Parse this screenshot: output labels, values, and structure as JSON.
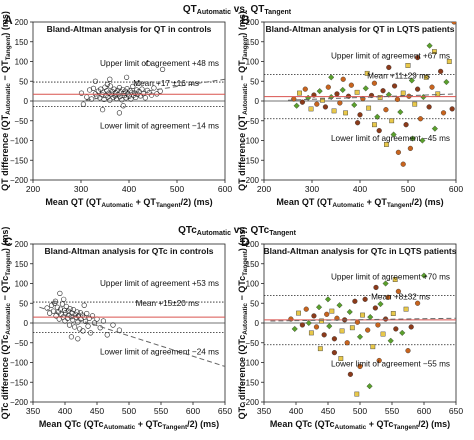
{
  "figure": {
    "row_headers": [
      {
        "main": "QT",
        "sub1": "Automatic",
        "mid": " vs. QT",
        "sub2": "Tangent"
      },
      {
        "main": "QTc",
        "sub1": "Automatic",
        "mid": " vs. QTc",
        "sub2": "Tangent"
      }
    ]
  },
  "colors": {
    "mean_line": "#d9534f",
    "trend_line": "#666666",
    "loa_line": "#222222",
    "controls_marker": "#222222",
    "lqts_markers": [
      "#c8641e",
      "#5aa02c",
      "#e8c84a",
      "#8b3a1a"
    ]
  },
  "chart_data": [
    {
      "panel": "A",
      "type": "scatter",
      "title": "Bland-Altman analysis for QT in controls",
      "xlabel": {
        "main": "Mean QT (QT",
        "sub1": "Automatic",
        "mid": " + QT",
        "sub2": "Tangent",
        "end": "/2) (ms)"
      },
      "ylabel": {
        "main": "QT difference (QT",
        "sub1": "Automatic",
        "mid": " − QT",
        "sub2": "Tangent",
        "end": ") (ms)"
      },
      "xlim": [
        200,
        600
      ],
      "ylim": [
        -200,
        200
      ],
      "xticks": [
        200,
        300,
        400,
        500,
        600
      ],
      "yticks": [
        -200,
        -150,
        -100,
        -50,
        0,
        50,
        100,
        150,
        200
      ],
      "mean": 17,
      "upper": 48,
      "lower": -14,
      "trend": [
        [
          310,
          2
        ],
        [
          600,
          55
        ]
      ],
      "annotations": {
        "upper": "Upper limit of agreement +48 ms",
        "mean": "Mean +17 ±16 ms",
        "lower": "Lower limit of agreement −14 ms"
      },
      "marker": "circle",
      "points": [
        [
          301,
          20
        ],
        [
          312,
          10
        ],
        [
          318,
          28
        ],
        [
          322,
          5
        ],
        [
          326,
          32
        ],
        [
          330,
          18
        ],
        [
          333,
          12
        ],
        [
          336,
          25
        ],
        [
          339,
          8
        ],
        [
          341,
          30
        ],
        [
          344,
          16
        ],
        [
          346,
          22
        ],
        [
          348,
          4
        ],
        [
          350,
          35
        ],
        [
          352,
          14
        ],
        [
          354,
          26
        ],
        [
          356,
          10
        ],
        [
          358,
          20
        ],
        [
          360,
          2
        ],
        [
          361,
          38
        ],
        [
          363,
          17
        ],
        [
          365,
          24
        ],
        [
          367,
          9
        ],
        [
          369,
          30
        ],
        [
          371,
          13
        ],
        [
          372,
          21
        ],
        [
          374,
          6
        ],
        [
          376,
          27
        ],
        [
          378,
          16
        ],
        [
          380,
          34
        ],
        [
          381,
          11
        ],
        [
          383,
          23
        ],
        [
          385,
          3
        ],
        [
          387,
          29
        ],
        [
          389,
          19
        ],
        [
          390,
          14
        ],
        [
          392,
          25
        ],
        [
          394,
          8
        ],
        [
          396,
          31
        ],
        [
          398,
          18
        ],
        [
          400,
          12
        ],
        [
          402,
          26
        ],
        [
          404,
          5
        ],
        [
          406,
          22
        ],
        [
          408,
          37
        ],
        [
          410,
          15
        ],
        [
          412,
          20
        ],
        [
          414,
          9
        ],
        [
          416,
          28
        ],
        [
          418,
          17
        ],
        [
          421,
          24
        ],
        [
          424,
          13
        ],
        [
          427,
          30
        ],
        [
          430,
          19
        ],
        [
          434,
          8
        ],
        [
          438,
          27
        ],
        [
          442,
          21
        ],
        [
          447,
          15
        ],
        [
          452,
          33
        ],
        [
          458,
          18
        ],
        [
          465,
          25
        ],
        [
          345,
          -22
        ],
        [
          380,
          -30
        ],
        [
          360,
          55
        ],
        [
          395,
          60
        ],
        [
          420,
          45
        ],
        [
          305,
          -8
        ],
        [
          355,
          42
        ],
        [
          440,
          95
        ],
        [
          470,
          80
        ],
        [
          330,
          50
        ],
        [
          388,
          -12
        ]
      ]
    },
    {
      "panel": "B",
      "type": "scatter",
      "title": "Bland-Altman analysis for QT in LQTS patients",
      "xlabel": {
        "main": "Mean QT (QT",
        "sub1": "Automatic",
        "mid": " + QT",
        "sub2": "Tangent",
        "end": "/2) (ms)"
      },
      "ylabel": {
        "main": "QT difference (QT",
        "sub1": "Automatic",
        "mid": " − QT",
        "sub2": "Tangent",
        "end": ") (ms)"
      },
      "xlim": [
        200,
        600
      ],
      "ylim": [
        -200,
        200
      ],
      "xticks": [
        200,
        300,
        400,
        500,
        600
      ],
      "yticks": [
        -200,
        -150,
        -100,
        -50,
        0,
        50,
        100,
        150,
        200
      ],
      "mean": 11,
      "upper": 67,
      "lower": -45,
      "trend": [
        [
          250,
          2
        ],
        [
          600,
          18
        ]
      ],
      "annotations": {
        "upper": "Upper limit of agreement +67 ms",
        "mean": "Mean +11±29 ms",
        "lower": "Lower limit of agreement −45 ms"
      },
      "marker": "mixed",
      "points": [
        [
          262,
          5
        ],
        [
          268,
          -12
        ],
        [
          274,
          20
        ],
        [
          280,
          -3
        ],
        [
          286,
          30
        ],
        [
          292,
          8
        ],
        [
          298,
          -20
        ],
        [
          304,
          15
        ],
        [
          310,
          -8
        ],
        [
          316,
          25
        ],
        [
          322,
          2
        ],
        [
          328,
          -15
        ],
        [
          334,
          35
        ],
        [
          340,
          10
        ],
        [
          346,
          -25
        ],
        [
          352,
          18
        ],
        [
          358,
          -5
        ],
        [
          364,
          28
        ],
        [
          370,
          -30
        ],
        [
          376,
          12
        ],
        [
          382,
          40
        ],
        [
          388,
          -10
        ],
        [
          394,
          22
        ],
        [
          400,
          -35
        ],
        [
          406,
          6
        ],
        [
          412,
          32
        ],
        [
          418,
          -18
        ],
        [
          424,
          14
        ],
        [
          430,
          45
        ],
        [
          436,
          -40
        ],
        [
          442,
          9
        ],
        [
          448,
          26
        ],
        [
          454,
          -22
        ],
        [
          460,
          16
        ],
        [
          466,
          -50
        ],
        [
          472,
          38
        ],
        [
          478,
          4
        ],
        [
          484,
          -28
        ],
        [
          490,
          20
        ],
        [
          496,
          -60
        ],
        [
          502,
          12
        ],
        [
          508,
          52
        ],
        [
          514,
          -8
        ],
        [
          520,
          30
        ],
        [
          526,
          -45
        ],
        [
          532,
          10
        ],
        [
          538,
          60
        ],
        [
          544,
          -15
        ],
        [
          550,
          35
        ],
        [
          556,
          -70
        ],
        [
          562,
          18
        ],
        [
          568,
          75
        ],
        [
          574,
          -30
        ],
        [
          580,
          48
        ],
        [
          586,
          100
        ],
        [
          592,
          -20
        ],
        [
          596,
          200
        ],
        [
          470,
          -85
        ],
        [
          455,
          -110
        ],
        [
          440,
          -75
        ],
        [
          480,
          -130
        ],
        [
          510,
          -95
        ],
        [
          500,
          90
        ],
        [
          520,
          110
        ],
        [
          490,
          -160
        ],
        [
          545,
          140
        ],
        [
          430,
          -60
        ],
        [
          395,
          -55
        ],
        [
          365,
          55
        ],
        [
          340,
          60
        ],
        [
          415,
          70
        ],
        [
          460,
          85
        ],
        [
          505,
          -120
        ],
        [
          530,
          -100
        ],
        [
          555,
          125
        ]
      ]
    },
    {
      "panel": "C",
      "type": "scatter",
      "title": "Bland-Altman analysis for QTc in controls",
      "xlabel": {
        "main": "Mean QTc (QTc",
        "sub1": "Automatic",
        "mid": " + QTc",
        "sub2": "Tangent",
        "end": "/2) (ms)"
      },
      "ylabel": {
        "main": "QTc difference (QTc",
        "sub1": "Automatic",
        "mid": " − QTc",
        "sub2": "Tangent",
        "end": ") (ms)"
      },
      "xlim": [
        350,
        650
      ],
      "ylim": [
        -200,
        200
      ],
      "xticks": [
        350,
        400,
        450,
        500,
        550,
        600,
        650
      ],
      "yticks": [
        -200,
        -150,
        -100,
        -50,
        0,
        50,
        100,
        150,
        200
      ],
      "mean": 15,
      "upper": 53,
      "lower": -24,
      "trend": [
        [
          360,
          40
        ],
        [
          650,
          -110
        ]
      ],
      "annotations": {
        "upper": "Upper limit of agreement +53 ms",
        "mean": "Mean +15±20 ms",
        "lower": "Lower limit of agreement −24 ms"
      },
      "marker": "circle",
      "points": [
        [
          372,
          38
        ],
        [
          376,
          25
        ],
        [
          379,
          45
        ],
        [
          382,
          30
        ],
        [
          384,
          50
        ],
        [
          386,
          18
        ],
        [
          388,
          40
        ],
        [
          390,
          28
        ],
        [
          391,
          10
        ],
        [
          393,
          35
        ],
        [
          394,
          22
        ],
        [
          396,
          48
        ],
        [
          397,
          15
        ],
        [
          399,
          32
        ],
        [
          400,
          5
        ],
        [
          401,
          26
        ],
        [
          402,
          42
        ],
        [
          404,
          12
        ],
        [
          405,
          30
        ],
        [
          406,
          20
        ],
        [
          407,
          -5
        ],
        [
          408,
          36
        ],
        [
          410,
          16
        ],
        [
          411,
          25
        ],
        [
          412,
          8
        ],
        [
          413,
          34
        ],
        [
          415,
          -10
        ],
        [
          416,
          22
        ],
        [
          417,
          14
        ],
        [
          419,
          28
        ],
        [
          420,
          2
        ],
        [
          421,
          18
        ],
        [
          423,
          -15
        ],
        [
          424,
          26
        ],
        [
          425,
          10
        ],
        [
          427,
          20
        ],
        [
          428,
          -20
        ],
        [
          430,
          15
        ],
        [
          432,
          4
        ],
        [
          434,
          24
        ],
        [
          436,
          -8
        ],
        [
          438,
          12
        ],
        [
          440,
          -25
        ],
        [
          443,
          18
        ],
        [
          446,
          0
        ],
        [
          450,
          10
        ],
        [
          455,
          -12
        ],
        [
          460,
          5
        ],
        [
          466,
          -30
        ],
        [
          475,
          -5
        ],
        [
          485,
          -18
        ],
        [
          398,
          60
        ],
        [
          392,
          75
        ],
        [
          410,
          -35
        ],
        [
          420,
          -40
        ],
        [
          385,
          55
        ],
        [
          430,
          45
        ]
      ]
    },
    {
      "panel": "D",
      "type": "scatter",
      "title": "Bland-Altman analysis for QTc in LQTS patients",
      "xlabel": {
        "main": "Mean QTc (QTc",
        "sub1": "Automatic",
        "mid": " + QTc",
        "sub2": "Tangent",
        "end": "/2) (ms)"
      },
      "ylabel": {
        "main": "QTc difference (QTc",
        "sub1": "Automatic",
        "mid": " − QTc",
        "sub2": "Tangent",
        "end": ") (ms)"
      },
      "xlim": [
        350,
        650
      ],
      "ylim": [
        -200,
        200
      ],
      "xticks": [
        350,
        400,
        450,
        500,
        550,
        600,
        650
      ],
      "yticks": [
        -200,
        -150,
        -100,
        -50,
        0,
        50,
        100,
        150,
        200
      ],
      "mean": 8,
      "upper": 70,
      "lower": -55,
      "trend": [
        [
          360,
          5
        ],
        [
          650,
          12
        ]
      ],
      "annotations": {
        "upper": "Upper limit of agreement +70 ms",
        "mean": "Mean +8±32 ms",
        "lower": "Lower limit of agreement −55 ms"
      },
      "marker": "mixed",
      "points": [
        [
          392,
          10
        ],
        [
          398,
          -15
        ],
        [
          404,
          25
        ],
        [
          410,
          -5
        ],
        [
          416,
          35
        ],
        [
          420,
          0
        ],
        [
          424,
          -25
        ],
        [
          428,
          18
        ],
        [
          432,
          -10
        ],
        [
          436,
          40
        ],
        [
          440,
          5
        ],
        [
          444,
          -30
        ],
        [
          448,
          22
        ],
        [
          452,
          -8
        ],
        [
          456,
          30
        ],
        [
          460,
          -40
        ],
        [
          464,
          12
        ],
        [
          468,
          45
        ],
        [
          472,
          -20
        ],
        [
          476,
          8
        ],
        [
          480,
          -50
        ],
        [
          484,
          28
        ],
        [
          488,
          -12
        ],
        [
          492,
          55
        ],
        [
          496,
          2
        ],
        [
          500,
          -35
        ],
        [
          504,
          20
        ],
        [
          508,
          60
        ],
        [
          512,
          -18
        ],
        [
          516,
          15
        ],
        [
          520,
          -60
        ],
        [
          524,
          38
        ],
        [
          528,
          -5
        ],
        [
          532,
          48
        ],
        [
          536,
          -28
        ],
        [
          540,
          10
        ],
        [
          544,
          65
        ],
        [
          548,
          -45
        ],
        [
          552,
          24
        ],
        [
          556,
          -15
        ],
        [
          560,
          80
        ],
        [
          566,
          -25
        ],
        [
          572,
          35
        ],
        [
          580,
          -10
        ],
        [
          590,
          50
        ],
        [
          600,
          120
        ],
        [
          470,
          -90
        ],
        [
          485,
          -130
        ],
        [
          500,
          -110
        ],
        [
          515,
          -160
        ],
        [
          495,
          -180
        ],
        [
          460,
          -75
        ],
        [
          530,
          -95
        ],
        [
          540,
          100
        ],
        [
          555,
          110
        ],
        [
          525,
          90
        ],
        [
          575,
          -70
        ],
        [
          450,
          60
        ],
        [
          438,
          -65
        ]
      ]
    }
  ]
}
